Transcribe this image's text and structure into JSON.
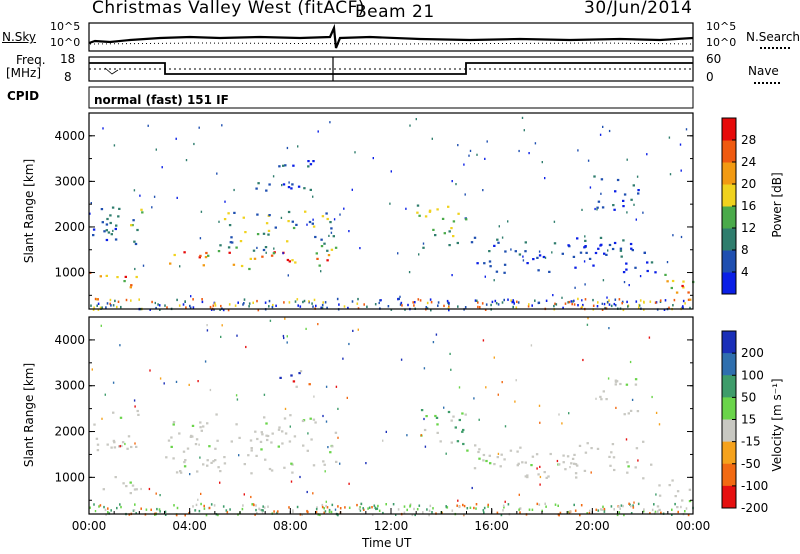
{
  "header": {
    "site": "Christmas Valley West (fitACF)",
    "beam": "Beam 21",
    "date": "30/Jun/2014"
  },
  "noise_panel": {
    "left_label": "N.Sky",
    "left_ticks": [
      "10^5",
      "10^0"
    ],
    "right_label": "N.Search",
    "right_ticks": [
      "10^5",
      "10^0"
    ]
  },
  "freq_panel": {
    "left_label_line1": "Freq.",
    "left_label_line2": "[MHz]",
    "left_ticks": [
      "18",
      "8"
    ],
    "right_label": "Nave",
    "right_ticks": [
      "60",
      "0"
    ],
    "cpid_label": "CPID",
    "mode_text": "normal (fast) 151 IF"
  },
  "chart_data": [
    {
      "type": "heatmap",
      "ylabel": "Slant Range [km]",
      "y_ticks": [
        "1000",
        "2000",
        "3000",
        "4000"
      ],
      "ylim": [
        200,
        4500
      ],
      "xlim_hours": [
        0,
        24
      ],
      "colorbar": {
        "label": "Power [dB]",
        "ticks": [
          "4",
          "8",
          "12",
          "16",
          "20",
          "24",
          "28"
        ],
        "colors": [
          "#0a1fe6",
          "#1f4fb0",
          "#2f7d6d",
          "#4aaa4a",
          "#f0d21e",
          "#f29a12",
          "#ef5a10",
          "#e60a0a"
        ]
      },
      "bands": [
        {
          "t0": 0.0,
          "t1": 2.0,
          "r0": 650,
          "r1": 1050,
          "level": "high"
        },
        {
          "t0": 0.0,
          "t1": 2.0,
          "r0": 1600,
          "r1": 2500,
          "level": "low"
        },
        {
          "t0": 0.8,
          "t1": 2.2,
          "r0": 2000,
          "r1": 2450,
          "level": "mid"
        },
        {
          "t0": 3.0,
          "t1": 9.8,
          "r0": 1100,
          "r1": 1500,
          "level": "high"
        },
        {
          "t0": 5.0,
          "t1": 9.8,
          "r0": 1500,
          "r1": 2400,
          "level": "mid"
        },
        {
          "t0": 6.5,
          "t1": 9.0,
          "r0": 2800,
          "r1": 3500,
          "level": "low"
        },
        {
          "t0": 13.0,
          "t1": 15.0,
          "r0": 1500,
          "r1": 2500,
          "level": "mid"
        },
        {
          "t0": 15.0,
          "t1": 22.5,
          "r0": 1000,
          "r1": 1800,
          "level": "low"
        },
        {
          "t0": 20.0,
          "t1": 21.8,
          "r0": 2400,
          "r1": 3200,
          "level": "low"
        },
        {
          "t0": 22.5,
          "t1": 24.0,
          "r0": 300,
          "r1": 1000,
          "level": "high"
        }
      ]
    },
    {
      "type": "heatmap",
      "ylabel": "Slant Range [km]",
      "y_ticks": [
        "1000",
        "2000",
        "3000",
        "4000"
      ],
      "ylim": [
        200,
        4500
      ],
      "xlim_hours": [
        0,
        24
      ],
      "xlabel": "Time UT",
      "x_ticks": [
        "00:00",
        "04:00",
        "08:00",
        "12:00",
        "16:00",
        "20:00",
        "00:00"
      ],
      "colorbar": {
        "label": "Velocity [m s⁻¹]",
        "ticks": [
          "200",
          "100",
          "50",
          "15",
          "-15",
          "-50",
          "-100",
          "-200"
        ],
        "colors": [
          "#1a2fb8",
          "#2f6fae",
          "#3e9c6a",
          "#6ad44a",
          "#c8c8c2",
          "#f5a21c",
          "#f26a12",
          "#e61010"
        ]
      },
      "bands": [
        {
          "t0": 0.0,
          "t1": 2.0,
          "r0": 650,
          "r1": 1050,
          "level": "ground"
        },
        {
          "t0": 0.0,
          "t1": 2.0,
          "r0": 1600,
          "r1": 2500,
          "level": "ground"
        },
        {
          "t0": 3.0,
          "t1": 9.8,
          "r0": 1100,
          "r1": 2400,
          "level": "ground"
        },
        {
          "t0": 7.5,
          "t1": 8.8,
          "r0": 2900,
          "r1": 3400,
          "level": "red"
        },
        {
          "t0": 13.0,
          "t1": 15.0,
          "r0": 1500,
          "r1": 2500,
          "level": "green"
        },
        {
          "t0": 15.0,
          "t1": 22.5,
          "r0": 1000,
          "r1": 1800,
          "level": "ground"
        },
        {
          "t0": 20.0,
          "t1": 21.8,
          "r0": 2400,
          "r1": 3200,
          "level": "ground"
        },
        {
          "t0": 22.5,
          "t1": 24.0,
          "r0": 300,
          "r1": 1000,
          "level": "ground"
        }
      ]
    }
  ]
}
